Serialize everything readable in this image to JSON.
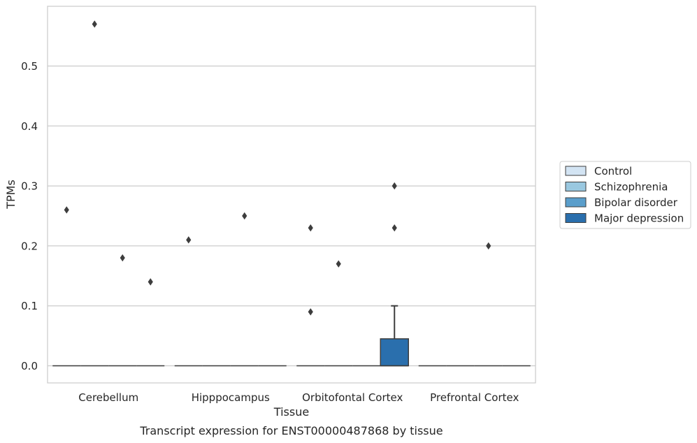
{
  "chart_data": {
    "type": "box",
    "title": "",
    "caption": "Transcript expression for ENST00000487868 by tissue",
    "xlabel": "Tissue",
    "ylabel": "TPMs",
    "ylim": [
      -0.028,
      0.6
    ],
    "yticks": [
      0.0,
      0.1,
      0.2,
      0.3,
      0.4,
      0.5
    ],
    "ytick_labels": [
      "0.0",
      "0.1",
      "0.2",
      "0.3",
      "0.4",
      "0.5"
    ],
    "grid": "horizontal",
    "legend_position": "right",
    "categories": [
      "Cerebellum",
      "Hipppocampus",
      "Orbitofontal Cortex",
      "Prefrontal Cortex"
    ],
    "series": [
      {
        "name": "Control",
        "color": "#d3e4f3",
        "boxes": [
          {
            "q1": 0,
            "median": 0,
            "q3": 0,
            "whisker_low": 0,
            "whisker_high": 0,
            "outliers": []
          },
          {
            "q1": 0,
            "median": 0,
            "q3": 0,
            "whisker_low": 0,
            "whisker_high": 0,
            "outliers": []
          },
          {
            "q1": 0,
            "median": 0,
            "q3": 0,
            "whisker_low": 0,
            "whisker_high": 0,
            "outliers": [
              0.23,
              0.09
            ]
          },
          {
            "q1": 0,
            "median": 0,
            "q3": 0,
            "whisker_low": 0,
            "whisker_high": 0,
            "outliers": []
          }
        ]
      },
      {
        "name": "Schizophrenia",
        "color": "#9ac8e0",
        "boxes": [
          {
            "q1": 0,
            "median": 0,
            "q3": 0,
            "whisker_low": 0,
            "whisker_high": 0,
            "outliers": [
              0.57
            ]
          },
          {
            "q1": 0,
            "median": 0,
            "q3": 0,
            "whisker_low": 0,
            "whisker_high": 0,
            "outliers": []
          },
          {
            "q1": 0,
            "median": 0,
            "q3": 0,
            "whisker_low": 0,
            "whisker_high": 0,
            "outliers": [
              0.17
            ]
          },
          {
            "q1": 0,
            "median": 0,
            "q3": 0,
            "whisker_low": 0,
            "whisker_high": 0,
            "outliers": []
          }
        ]
      },
      {
        "name": "Bipolar disorder",
        "color": "#5a9ecb",
        "boxes": [
          {
            "q1": 0,
            "median": 0,
            "q3": 0,
            "whisker_low": 0,
            "whisker_high": 0,
            "outliers": [
              0.18
            ]
          },
          {
            "q1": 0,
            "median": 0,
            "q3": 0,
            "whisker_low": 0,
            "whisker_high": 0,
            "outliers": [
              0.25
            ]
          },
          {
            "q1": 0,
            "median": 0,
            "q3": 0,
            "whisker_low": 0,
            "whisker_high": 0,
            "outliers": []
          },
          {
            "q1": 0,
            "median": 0,
            "q3": 0,
            "whisker_low": 0,
            "whisker_high": 0,
            "outliers": [
              0.2
            ]
          }
        ]
      },
      {
        "name": "Major depression",
        "color": "#2a6fad",
        "boxes": [
          {
            "q1": 0,
            "median": 0,
            "q3": 0,
            "whisker_low": 0,
            "whisker_high": 0,
            "outliers": [
              0.14
            ]
          },
          {
            "q1": 0,
            "median": 0,
            "q3": 0,
            "whisker_low": 0,
            "whisker_high": 0,
            "outliers": []
          },
          {
            "q1": 0,
            "median": 0,
            "q3": 0.045,
            "whisker_low": 0,
            "whisker_high": 0.1,
            "outliers": [
              0.3,
              0.23
            ]
          },
          {
            "q1": 0,
            "median": 0,
            "q3": 0,
            "whisker_low": 0,
            "whisker_high": 0,
            "outliers": []
          }
        ]
      }
    ],
    "extra_outliers": [
      {
        "category": 0,
        "value": 0.26
      },
      {
        "category": 1,
        "value": 0.21
      }
    ]
  }
}
